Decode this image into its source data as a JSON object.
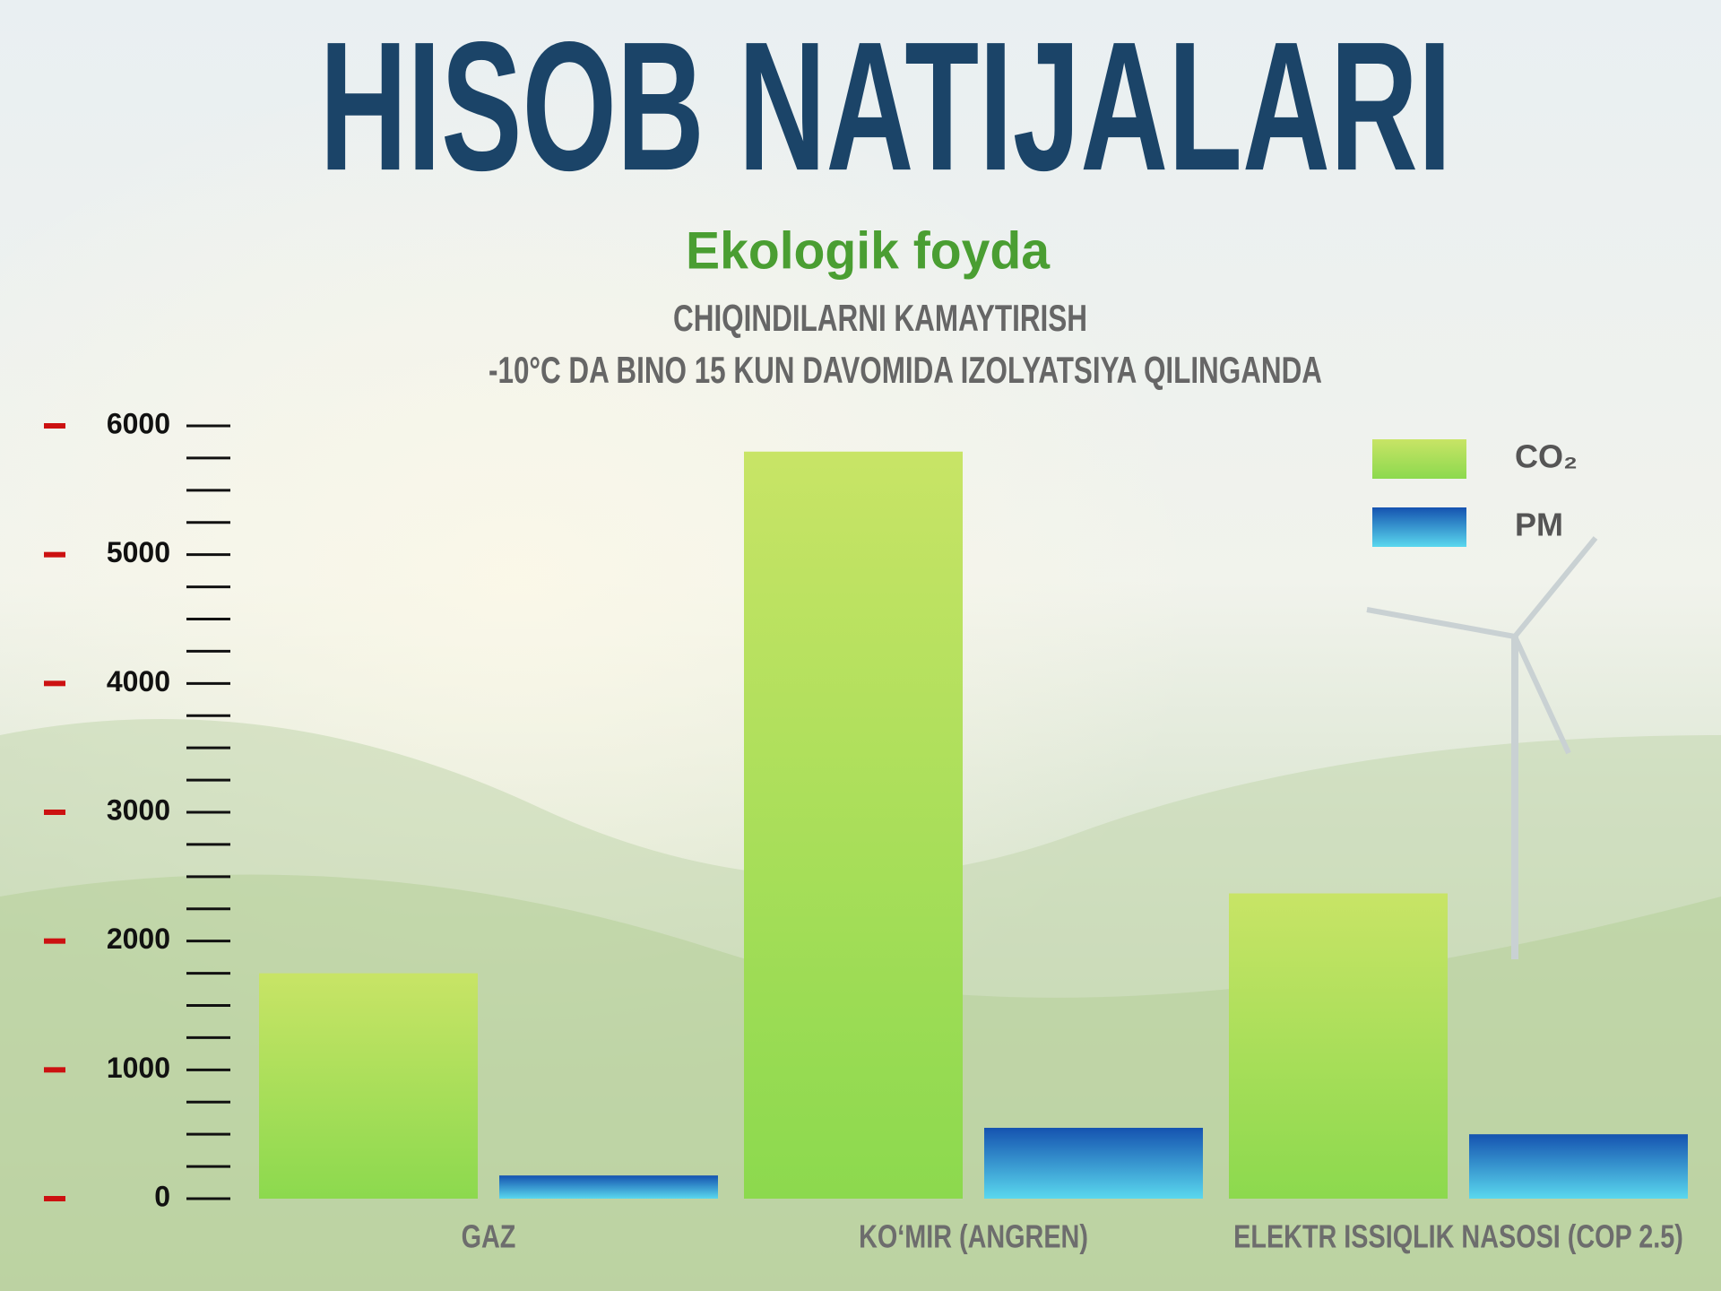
{
  "chart_data": {
    "type": "bar",
    "title": "HISOB NATIJALARI",
    "subtitle": "Ekologik foyda",
    "chart_title": [
      "CHIQINDILARNI KAMAYTIRISH",
      "-10°C DA BINO 15 KUN DAVOMIDA IZOLYATSIYA QILINGANDA"
    ],
    "categories": [
      "GAZ",
      "KO‘MIR (ANGREN)",
      "ELEKTR ISSIQLIK NASOSI (COP 2.5)"
    ],
    "series": [
      {
        "name": "CO₂",
        "gradient": [
          "#c8e466",
          "#8cd94e"
        ],
        "values": [
          1750,
          5800,
          2370
        ]
      },
      {
        "name": "PM",
        "gradient": [
          "#1553b0",
          "#5ad8ee"
        ],
        "values": [
          180,
          550,
          500
        ]
      }
    ],
    "ylim": [
      0,
      6000
    ],
    "yticks": [
      0,
      1000,
      2000,
      3000,
      4000,
      5000,
      6000
    ],
    "yticks_minor": [
      250,
      500,
      750,
      1250,
      1500,
      1750,
      2250,
      2500,
      2750,
      3250,
      3500,
      3750,
      4250,
      4500,
      4750,
      5250,
      5500,
      5750
    ],
    "legend": "top-right"
  }
}
